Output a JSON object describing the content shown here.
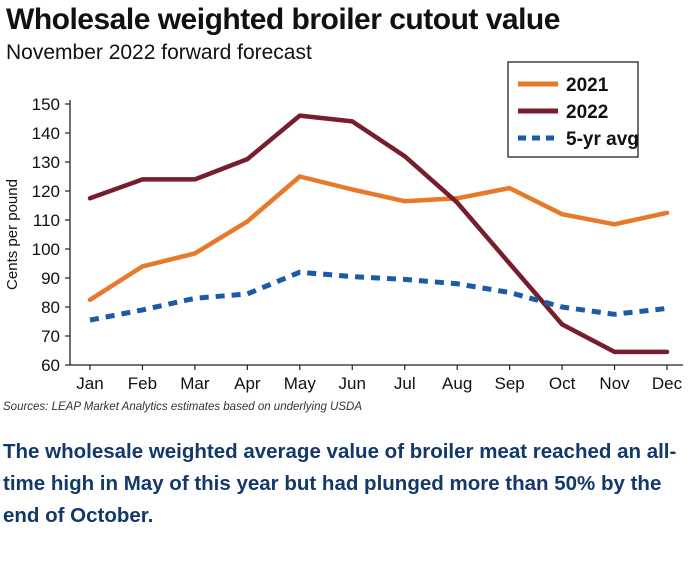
{
  "header": {
    "title": "Wholesale weighted broiler cutout value",
    "subtitle": "November 2022 forward forecast"
  },
  "chart_data": {
    "type": "line",
    "categories": [
      "Jan",
      "Feb",
      "Mar",
      "Apr",
      "May",
      "Jun",
      "Jul",
      "Aug",
      "Sep",
      "Oct",
      "Nov",
      "Dec"
    ],
    "series": [
      {
        "name": "2021",
        "color": "#e8782a",
        "style": "solid",
        "values": [
          82.5,
          94,
          98.5,
          109.5,
          125,
          120.5,
          116.5,
          117.5,
          121,
          112,
          108.5,
          112.5
        ]
      },
      {
        "name": "2022",
        "color": "#761d2e",
        "style": "solid",
        "values": [
          117.5,
          124,
          124,
          131,
          146,
          144,
          132,
          116,
          95,
          74,
          64.5,
          64.5
        ]
      },
      {
        "name": "5-yr avg",
        "color": "#1b5aa8",
        "style": "dashed",
        "values": [
          75.5,
          79,
          83,
          84.5,
          92,
          90.5,
          89.5,
          88,
          85,
          80,
          77.5,
          79.5
        ]
      }
    ],
    "title": "Wholesale weighted broiler cutout value",
    "xlabel": "",
    "ylabel": "Cents per pound",
    "ylim": [
      60,
      150
    ],
    "yticks": [
      60,
      70,
      80,
      90,
      100,
      110,
      120,
      130,
      140,
      150
    ],
    "grid": false,
    "legend_position": "top-right"
  },
  "footer": {
    "source": "Sources: LEAP Market Analytics estimates based on underlying USDA",
    "caption": "The wholesale weighted average value of broiler meat reached an all-time high in May of this year but had plunged more than 50% by the end of October."
  }
}
